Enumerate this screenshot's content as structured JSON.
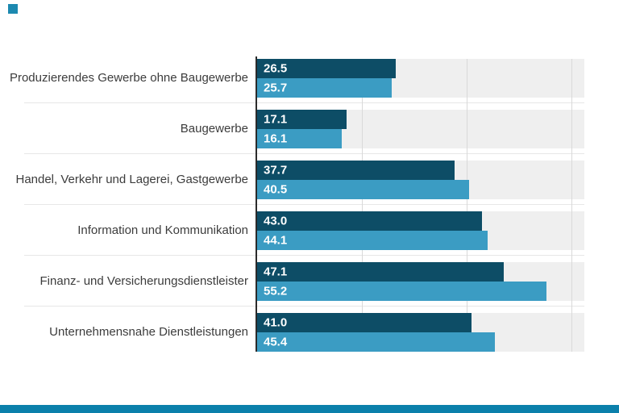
{
  "page": {
    "background": "#ffffff",
    "brand_square_color": "#1c89b0",
    "footer_bar_color": "#0b80ab"
  },
  "chart_data": {
    "type": "bar",
    "orientation": "horizontal",
    "categories": [
      "Produzierendes Gewerbe ohne Baugewerbe",
      "Baugewerbe",
      "Handel, Verkehr und Lagerei, Gastgewerbe",
      "Information und Kommunikation",
      "Finanz- und Versicherungsdienstleister",
      "Unternehmensnahe Dienstleistungen"
    ],
    "series": [
      {
        "name": "series-dark-blue",
        "color": "#0d4d66",
        "values": [
          26.5,
          17.1,
          37.7,
          43.0,
          47.1,
          41.0
        ],
        "display_values": [
          "26.5",
          "17.1",
          "37.7",
          "43.0",
          "47.1",
          "41.0"
        ]
      },
      {
        "name": "series-light-blue",
        "color": "#3b9cc3",
        "values": [
          25.7,
          16.1,
          40.5,
          44.1,
          55.2,
          45.4
        ],
        "display_values": [
          "25.7",
          "16.1",
          "40.5",
          "44.1",
          "55.2",
          "45.4"
        ]
      }
    ],
    "xlim": [
      0,
      62.5
    ],
    "gridlines_x": [
      20,
      40,
      60
    ],
    "grid": "vertical-only",
    "legend": "none",
    "value_labels": "inside-start",
    "band_background": "#efefef"
  }
}
